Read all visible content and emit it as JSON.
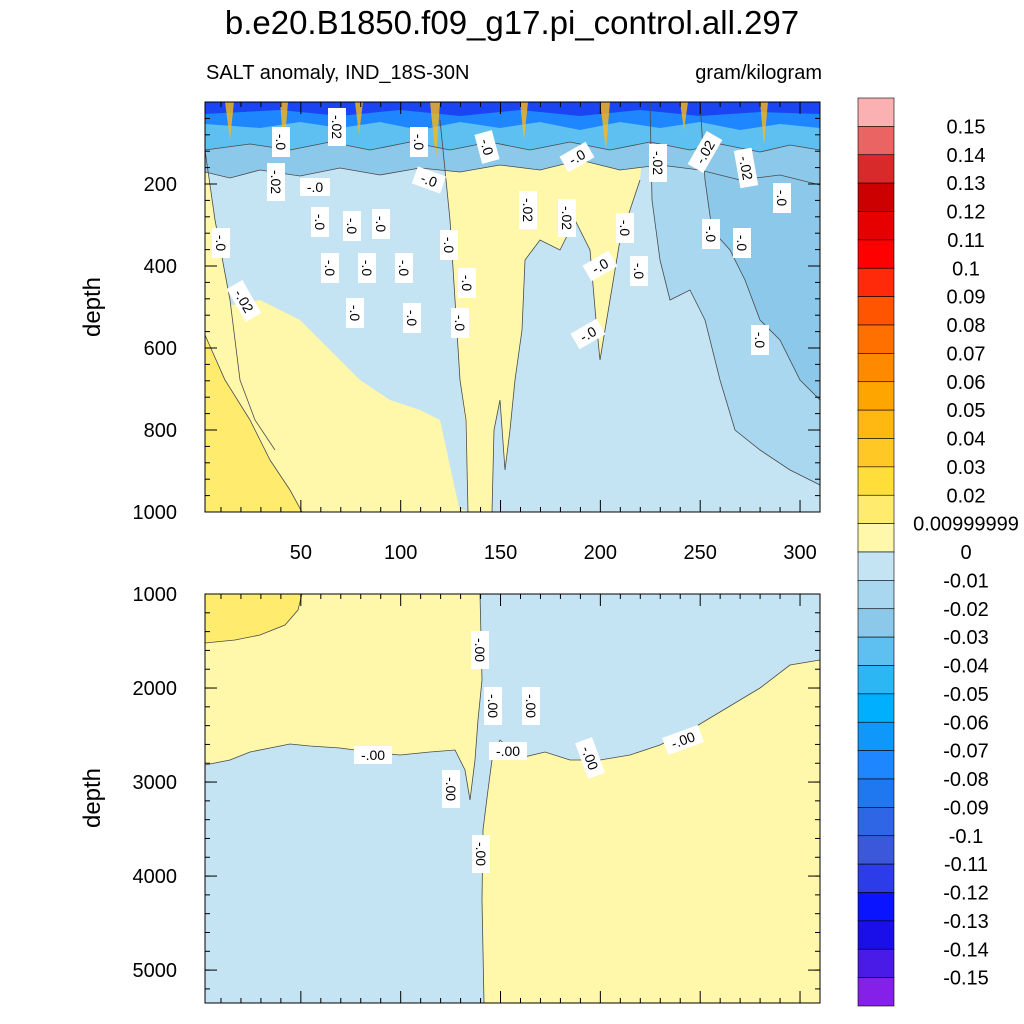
{
  "chart_data": {
    "type": "heatmap",
    "title": "b.e20.B1850.f09_g17.pi_control.all.297",
    "subtitle_left": "SALT anomaly, IND_18S-30N",
    "subtitle_right": "gram/kilogram",
    "x_range": [
      2,
      310
    ],
    "x_ticks": [
      50,
      100,
      150,
      200,
      250,
      300
    ],
    "panels": [
      {
        "name": "upper",
        "ylabel": "depth",
        "ylim": [
          0,
          1000
        ],
        "y_ticks": [
          200,
          400,
          600,
          800,
          1000
        ],
        "contour_labels": [
          "-.02",
          "-.0",
          "-.0",
          "-.0",
          "-.0",
          "-.02",
          "-.02",
          "-.02",
          "-.02",
          "-.0",
          "-.0",
          "-.0",
          "-.0",
          "-.0",
          "-.02",
          "-.02",
          "-.0",
          "-.0",
          "-.0",
          "-.0",
          "-.0",
          "-.0",
          "-.0",
          "-.0",
          "-.0",
          "-.0",
          "-.0",
          "-.0",
          "-.02",
          "-.0",
          "-.0",
          "-.0",
          "-.0",
          "-.0"
        ]
      },
      {
        "name": "lower",
        "ylabel": "depth",
        "ylim": [
          1000,
          5350
        ],
        "y_ticks": [
          1000,
          2000,
          3000,
          4000,
          5000
        ],
        "contour_labels": [
          "-.00",
          "-.00",
          "-.00",
          "-.00",
          "-.00",
          "-.00",
          "-.00",
          "-.00",
          "-.00"
        ]
      }
    ],
    "colorbar": {
      "labels": [
        "0.15",
        "0.14",
        "0.13",
        "0.12",
        "0.11",
        "0.1",
        "0.09",
        "0.08",
        "0.07",
        "0.06",
        "0.05",
        "0.04",
        "0.03",
        "0.02",
        "0.00999999",
        "0",
        "-0.01",
        "-0.02",
        "-0.03",
        "-0.04",
        "-0.05",
        "-0.06",
        "-0.07",
        "-0.08",
        "-0.09",
        "-0.1",
        "-0.11",
        "-0.12",
        "-0.13",
        "-0.14",
        "-0.15"
      ],
      "colors": [
        "#fbb1b1",
        "#ea6464",
        "#d82a2a",
        "#cc0000",
        "#e60000",
        "#ff0000",
        "#ff2a0a",
        "#ff5500",
        "#ff7000",
        "#ff8a00",
        "#ffa500",
        "#ffb812",
        "#ffc825",
        "#ffde3a",
        "#ffec6e",
        "#fff7aa",
        "#c4e4f4",
        "#a8d7ef",
        "#8cc8ea",
        "#5ec0f0",
        "#2cb6f4",
        "#00b0ff",
        "#0f98fa",
        "#1e87ff",
        "#1f78ef",
        "#2e66e6",
        "#3b58db",
        "#2b3ce8",
        "#0b14ff",
        "#1a0fe8",
        "#4a1ae6",
        "#8420e8"
      ]
    }
  }
}
